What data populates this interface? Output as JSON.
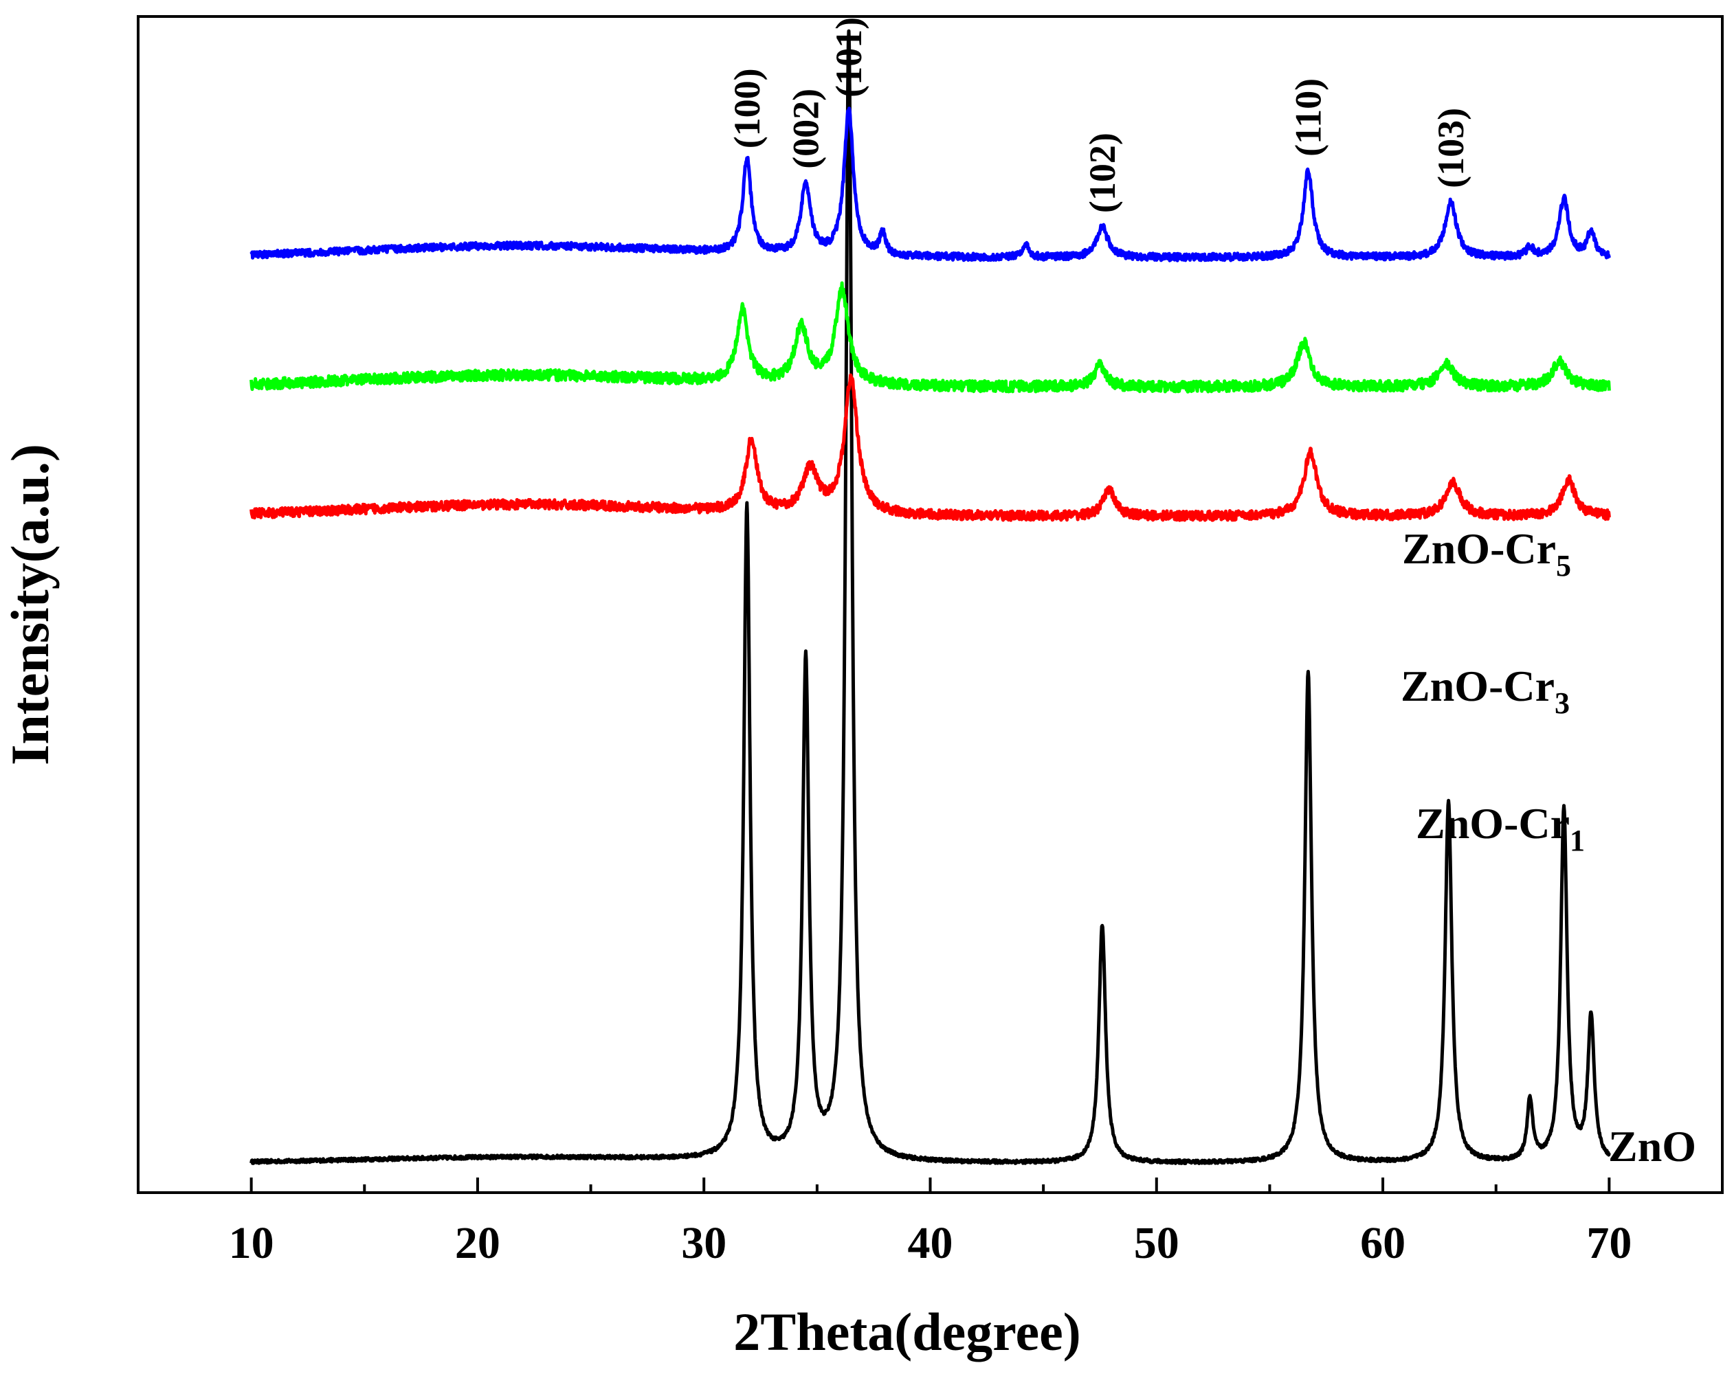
{
  "chart_data": {
    "type": "line",
    "title": "",
    "xlabel": "2Theta(degree)",
    "ylabel": "Intensity(a.u.)",
    "xlim": [
      5,
      75
    ],
    "ylim": [
      0,
      100
    ],
    "xticks": [
      10,
      20,
      30,
      40,
      50,
      60,
      70
    ],
    "x_minor_step": 5,
    "grid": false,
    "peak_positions": [
      {
        "label": "(100)",
        "x": 31.9
      },
      {
        "label": "(002)",
        "x": 34.5
      },
      {
        "label": "(101)",
        "x": 36.4
      },
      {
        "label": "(102)",
        "x": 47.6
      },
      {
        "label": "(110)",
        "x": 56.7
      },
      {
        "label": "(103)",
        "x": 63.0
      }
    ],
    "series": [
      {
        "name": "ZnO",
        "label_main": "ZnO",
        "label_sub": "",
        "color": "#000000",
        "baseline": 2.5,
        "noise": 0.15,
        "peaks": [
          {
            "x": 31.9,
            "h": 55.5,
            "w": 0.17
          },
          {
            "x": 34.5,
            "h": 42.3,
            "w": 0.17
          },
          {
            "x": 36.4,
            "h": 95.9,
            "w": 0.17
          },
          {
            "x": 47.6,
            "h": 20.2,
            "w": 0.18
          },
          {
            "x": 56.7,
            "h": 41.7,
            "w": 0.18
          },
          {
            "x": 62.9,
            "h": 30.7,
            "w": 0.18
          },
          {
            "x": 66.5,
            "h": 5.2,
            "w": 0.15
          },
          {
            "x": 68.0,
            "h": 30.1,
            "w": 0.17
          },
          {
            "x": 69.2,
            "h": 12.3,
            "w": 0.17
          }
        ]
      },
      {
        "name": "ZnO-Cr1",
        "label_main": "ZnO-Cr",
        "label_sub": "1",
        "color": "#ff0000",
        "baseline": 57.5,
        "noise": 0.4,
        "peaks": [
          {
            "x": 32.1,
            "h": 6.1,
            "w": 0.3
          },
          {
            "x": 34.7,
            "h": 3.7,
            "w": 0.4
          },
          {
            "x": 36.5,
            "h": 11.5,
            "w": 0.35
          },
          {
            "x": 47.9,
            "h": 2.3,
            "w": 0.3
          },
          {
            "x": 56.8,
            "h": 5.4,
            "w": 0.35
          },
          {
            "x": 63.1,
            "h": 2.8,
            "w": 0.4
          },
          {
            "x": 68.2,
            "h": 3.1,
            "w": 0.35
          }
        ]
      },
      {
        "name": "ZnO-Cr3",
        "label_main": "ZnO-Cr",
        "label_sub": "3",
        "color": "#00ff00",
        "baseline": 68.5,
        "noise": 0.45,
        "peaks": [
          {
            "x": 31.7,
            "h": 6.1,
            "w": 0.3
          },
          {
            "x": 34.3,
            "h": 4.8,
            "w": 0.35
          },
          {
            "x": 36.1,
            "h": 8.1,
            "w": 0.35
          },
          {
            "x": 47.5,
            "h": 1.8,
            "w": 0.3
          },
          {
            "x": 56.5,
            "h": 3.8,
            "w": 0.35
          },
          {
            "x": 62.8,
            "h": 1.9,
            "w": 0.4
          },
          {
            "x": 67.8,
            "h": 2.1,
            "w": 0.4
          }
        ]
      },
      {
        "name": "ZnO-Cr5",
        "label_main": "ZnO-Cr",
        "label_sub": "5",
        "color": "#0000ff",
        "baseline": 79.5,
        "noise": 0.3,
        "peaks": [
          {
            "x": 31.9,
            "h": 8.0,
            "w": 0.22
          },
          {
            "x": 34.5,
            "h": 6.1,
            "w": 0.25
          },
          {
            "x": 36.4,
            "h": 12.3,
            "w": 0.25
          },
          {
            "x": 37.9,
            "h": 2.0,
            "w": 0.15
          },
          {
            "x": 44.2,
            "h": 1.2,
            "w": 0.15
          },
          {
            "x": 47.6,
            "h": 2.6,
            "w": 0.3
          },
          {
            "x": 56.7,
            "h": 7.4,
            "w": 0.25
          },
          {
            "x": 63.0,
            "h": 4.7,
            "w": 0.3
          },
          {
            "x": 66.5,
            "h": 0.8,
            "w": 0.2
          },
          {
            "x": 68.0,
            "h": 5.0,
            "w": 0.25
          },
          {
            "x": 69.2,
            "h": 2.2,
            "w": 0.2
          }
        ]
      }
    ]
  }
}
